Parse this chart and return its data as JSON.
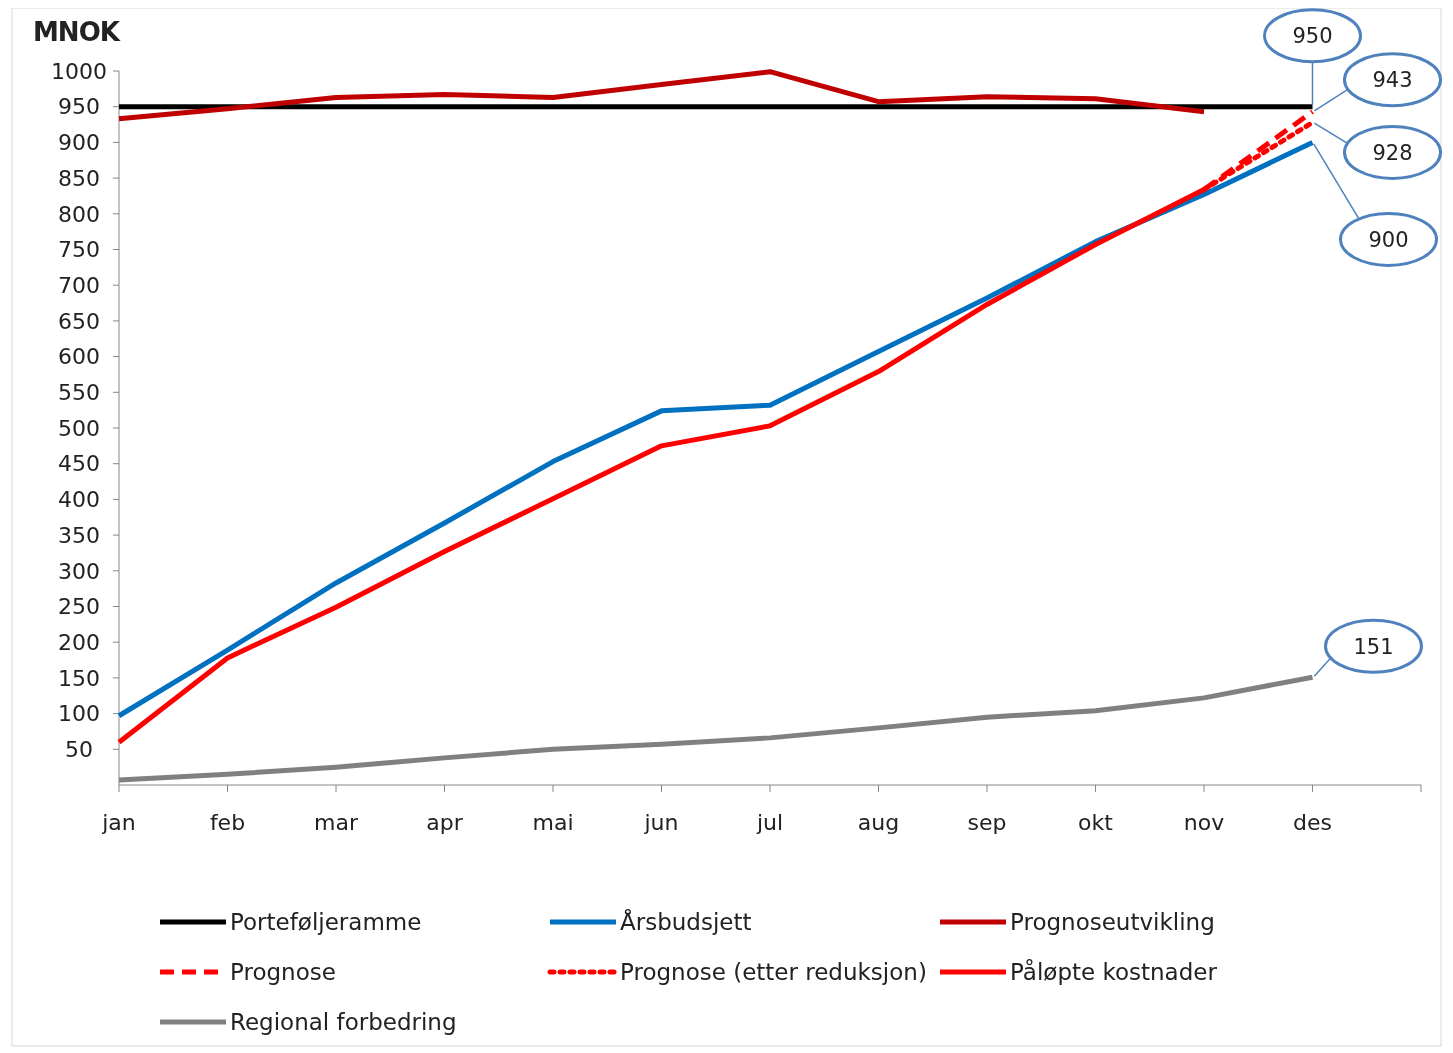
{
  "chart_data": {
    "type": "line",
    "ylabel": "MNOK",
    "categories": [
      "jan",
      "feb",
      "mar",
      "apr",
      "mai",
      "jun",
      "jul",
      "aug",
      "sep",
      "okt",
      "nov",
      "des",
      null
    ],
    "ylim": [
      0,
      1000
    ],
    "yticks": [
      50,
      100,
      150,
      200,
      250,
      300,
      350,
      400,
      450,
      500,
      550,
      600,
      650,
      700,
      750,
      800,
      850,
      900,
      950,
      1000
    ],
    "grid": false,
    "legend": "bottom",
    "line_style": "solid",
    "marker": "none",
    "annotations": [
      {
        "text": "950",
        "x": "des",
        "y": 950
      },
      {
        "text": "943",
        "x": "des",
        "y": 943
      },
      {
        "text": "928",
        "x": "des",
        "y": 928
      },
      {
        "text": "900",
        "x": "des",
        "y": 900
      },
      {
        "text": "151",
        "x": "des",
        "y": 151
      }
    ],
    "series": [
      {
        "name": "Porteføljeramme",
        "color": "#000000",
        "values": [
          950,
          950,
          950,
          950,
          950,
          950,
          950,
          950,
          950,
          950,
          950,
          950,
          null
        ]
      },
      {
        "name": "Årsbudsjett",
        "color": "#0070c0",
        "values": [
          97,
          189,
          283,
          367,
          453,
          524,
          532,
          607,
          682,
          761,
          827,
          900,
          null
        ]
      },
      {
        "name": "Prognoseutvikling",
        "color": "#c00000",
        "values": [
          933,
          947,
          963,
          967,
          963,
          981,
          999,
          957,
          964,
          961,
          943,
          null,
          null
        ]
      },
      {
        "name": "Prognose",
        "color": "#ff0000",
        "line_style": "dashed",
        "values": [
          null,
          null,
          null,
          null,
          null,
          null,
          null,
          null,
          null,
          null,
          834,
          943,
          null
        ]
      },
      {
        "name": "Prognose (etter reduksjon)",
        "color": "#ff0000",
        "line_style": "dotted",
        "values": [
          null,
          null,
          null,
          null,
          null,
          null,
          null,
          null,
          null,
          null,
          834,
          928,
          null
        ]
      },
      {
        "name": "Påløpte kostnader",
        "color": "#ff0000",
        "values": [
          60,
          178,
          249,
          327,
          401,
          475,
          503,
          579,
          673,
          757,
          834,
          null,
          null
        ]
      },
      {
        "name": "Regional forbedring",
        "color": "#808080",
        "values": [
          7,
          15,
          25,
          38,
          50,
          57,
          66,
          80,
          95,
          104,
          122,
          151,
          null
        ]
      }
    ]
  }
}
